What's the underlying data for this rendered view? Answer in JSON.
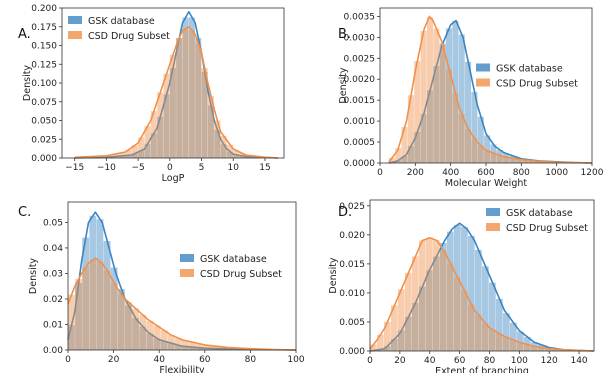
{
  "colors": {
    "gsk": "#3b85c0",
    "csd": "#f0904a"
  },
  "chart_data": [
    {
      "panel": "A.",
      "type": "area",
      "xlabel": "LogP",
      "ylabel": "Density",
      "xlim": [
        -17,
        18
      ],
      "ylim": [
        0,
        0.2
      ],
      "xticks": [
        -15,
        -10,
        -5,
        0,
        5,
        10,
        15
      ],
      "yticks": [
        0,
        0.025,
        0.05,
        0.075,
        0.1,
        0.125,
        0.15,
        0.175,
        0.2
      ],
      "ytick_labels": [
        "0.000",
        "0.025",
        "0.050",
        "0.075",
        "0.100",
        "0.125",
        "0.150",
        "0.175",
        "0.200"
      ],
      "legend_position": "top-left",
      "series": [
        {
          "name": "GSK database",
          "x": [
            -15,
            -10,
            -6,
            -4,
            -2,
            -1,
            0,
            1,
            2,
            3,
            4,
            5,
            6,
            7,
            8,
            9,
            10,
            12,
            15,
            17
          ],
          "values": [
            0,
            0.001,
            0.004,
            0.012,
            0.04,
            0.07,
            0.1,
            0.14,
            0.18,
            0.195,
            0.18,
            0.14,
            0.09,
            0.05,
            0.025,
            0.012,
            0.005,
            0.002,
            0.001,
            0
          ]
        },
        {
          "name": "CSD Drug Subset",
          "x": [
            -15,
            -10,
            -7,
            -5,
            -3,
            -2,
            -1,
            0,
            1,
            2,
            3,
            4,
            5,
            6,
            7,
            8,
            10,
            12,
            15,
            17
          ],
          "values": [
            0.001,
            0.003,
            0.008,
            0.02,
            0.05,
            0.075,
            0.1,
            0.125,
            0.15,
            0.17,
            0.175,
            0.165,
            0.14,
            0.1,
            0.065,
            0.035,
            0.012,
            0.004,
            0.001,
            0
          ]
        }
      ]
    },
    {
      "panel": "B.",
      "type": "area",
      "xlabel": "Molecular Weight",
      "ylabel": "Density",
      "xlim": [
        0,
        1200
      ],
      "ylim": [
        0,
        0.0037
      ],
      "xticks": [
        0,
        200,
        400,
        600,
        800,
        1000,
        1200
      ],
      "yticks": [
        0,
        0.0005,
        0.001,
        0.0015,
        0.002,
        0.0025,
        0.003,
        0.0035
      ],
      "ytick_labels": [
        "0.0000",
        "0.0005",
        "0.0010",
        "0.0015",
        "0.0020",
        "0.0025",
        "0.0030",
        "0.0035"
      ],
      "legend_position": "center-right",
      "series": [
        {
          "name": "GSK database",
          "x": [
            50,
            100,
            150,
            200,
            250,
            300,
            350,
            400,
            430,
            470,
            500,
            550,
            600,
            650,
            700,
            800,
            900,
            1000,
            1100,
            1200
          ],
          "values": [
            0,
            5e-05,
            0.0002,
            0.0006,
            0.0012,
            0.002,
            0.0028,
            0.0033,
            0.0034,
            0.003,
            0.0024,
            0.0014,
            0.0007,
            0.0004,
            0.00025,
            0.0001,
            5e-05,
            3e-05,
            1e-05,
            0
          ]
        },
        {
          "name": "CSD Drug Subset",
          "x": [
            50,
            100,
            150,
            200,
            250,
            280,
            300,
            350,
            400,
            450,
            500,
            550,
            600,
            700,
            800,
            900,
            1000,
            1200
          ],
          "values": [
            2e-05,
            0.0003,
            0.001,
            0.0022,
            0.0032,
            0.0035,
            0.0034,
            0.0029,
            0.0021,
            0.0013,
            0.0008,
            0.0005,
            0.0003,
            0.00015,
            8e-05,
            4e-05,
            2e-05,
            0
          ]
        }
      ]
    },
    {
      "panel": "C.",
      "type": "area",
      "xlabel": "Flexibility",
      "ylabel": "Density",
      "xlim": [
        0,
        100
      ],
      "ylim": [
        0,
        0.058
      ],
      "xticks": [
        0,
        20,
        40,
        60,
        80,
        100
      ],
      "yticks": [
        0,
        0.01,
        0.02,
        0.03,
        0.04,
        0.05
      ],
      "ytick_labels": [
        "0.00",
        "0.01",
        "0.02",
        "0.03",
        "0.04",
        "0.05"
      ],
      "legend_position": "center-right",
      "series": [
        {
          "name": "GSK database",
          "x": [
            0,
            3,
            6,
            9,
            12,
            15,
            18,
            21,
            25,
            30,
            35,
            40,
            50,
            60,
            70,
            80,
            90,
            100
          ],
          "values": [
            0.004,
            0.015,
            0.035,
            0.05,
            0.054,
            0.05,
            0.04,
            0.03,
            0.02,
            0.012,
            0.007,
            0.004,
            0.0015,
            0.0007,
            0.0004,
            0.0002,
            0.0001,
            0
          ]
        },
        {
          "name": "CSD Drug Subset",
          "x": [
            0,
            3,
            6,
            9,
            12,
            15,
            18,
            21,
            25,
            30,
            35,
            40,
            45,
            50,
            60,
            70,
            80,
            90,
            100
          ],
          "values": [
            0.018,
            0.025,
            0.03,
            0.034,
            0.036,
            0.034,
            0.03,
            0.025,
            0.02,
            0.016,
            0.012,
            0.009,
            0.006,
            0.004,
            0.002,
            0.001,
            0.0005,
            0.0002,
            0
          ]
        }
      ]
    },
    {
      "panel": "D.",
      "type": "area",
      "xlabel": "Extent of branching",
      "ylabel": "Density",
      "xlim": [
        0,
        150
      ],
      "ylim": [
        0,
        0.026
      ],
      "xticks": [
        0,
        20,
        40,
        60,
        80,
        100,
        120,
        140
      ],
      "yticks": [
        0,
        0.005,
        0.01,
        0.015,
        0.02,
        0.025
      ],
      "ytick_labels": [
        "0.000",
        "0.005",
        "0.010",
        "0.015",
        "0.020",
        "0.025"
      ],
      "legend_position": "top-right",
      "series": [
        {
          "name": "GSK database",
          "x": [
            0,
            10,
            20,
            30,
            40,
            50,
            55,
            60,
            65,
            70,
            80,
            90,
            100,
            110,
            120,
            130,
            140,
            150
          ],
          "values": [
            0,
            0.0004,
            0.003,
            0.008,
            0.014,
            0.019,
            0.021,
            0.022,
            0.021,
            0.019,
            0.013,
            0.007,
            0.0035,
            0.0015,
            0.0006,
            0.0002,
            0.0001,
            0
          ]
        },
        {
          "name": "CSD Drug Subset",
          "x": [
            0,
            5,
            10,
            20,
            30,
            35,
            40,
            45,
            50,
            60,
            70,
            80,
            90,
            100,
            110,
            120,
            130,
            140,
            150
          ],
          "values": [
            0.0003,
            0.002,
            0.004,
            0.01,
            0.016,
            0.019,
            0.0195,
            0.019,
            0.017,
            0.012,
            0.007,
            0.004,
            0.0025,
            0.0015,
            0.0008,
            0.0004,
            0.0002,
            0.0001,
            0
          ]
        }
      ]
    }
  ]
}
